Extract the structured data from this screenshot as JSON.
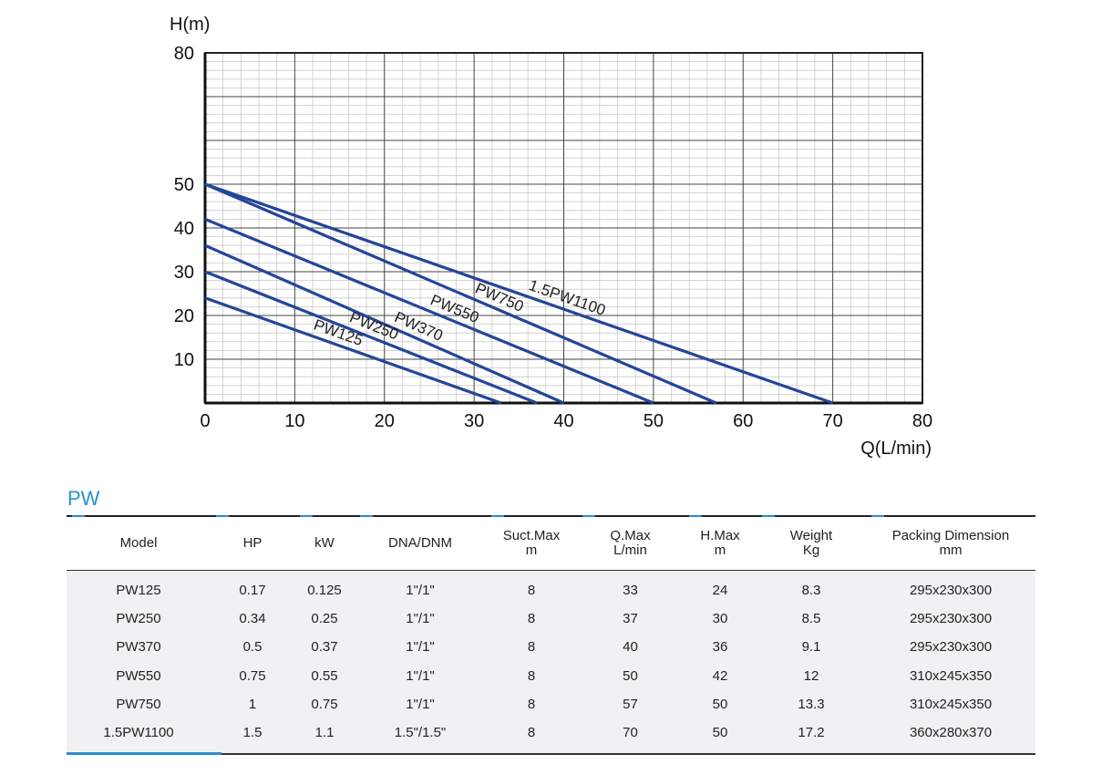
{
  "chart_data": {
    "type": "line",
    "ylabel": "H(m)",
    "xlabel": "Q(L/min)",
    "xlim": [
      0,
      80
    ],
    "ylim": [
      0,
      80
    ],
    "xticks": [
      0,
      10,
      20,
      30,
      40,
      50,
      60,
      70,
      80
    ],
    "yticks": [
      10,
      20,
      30,
      40,
      50,
      80
    ],
    "grid": true,
    "line_color": "#23469a",
    "series": [
      {
        "name": "PW125",
        "x": [
          0,
          33
        ],
        "y": [
          24,
          0
        ]
      },
      {
        "name": "PW250",
        "x": [
          0,
          37
        ],
        "y": [
          30,
          0
        ]
      },
      {
        "name": "PW370",
        "x": [
          0,
          40
        ],
        "y": [
          36,
          0
        ]
      },
      {
        "name": "PW550",
        "x": [
          0,
          50
        ],
        "y": [
          42,
          0
        ]
      },
      {
        "name": "PW750",
        "x": [
          0,
          57
        ],
        "y": [
          50,
          0
        ]
      },
      {
        "name": "1.5PW1100",
        "x": [
          0,
          70
        ],
        "y": [
          50,
          0
        ]
      }
    ]
  },
  "table": {
    "title": "PW",
    "accent_color": "#2a8fd0",
    "headers": [
      [
        "Model"
      ],
      [
        "HP"
      ],
      [
        "kW"
      ],
      [
        "DNA/DNM"
      ],
      [
        "Suct.Max",
        "m"
      ],
      [
        "Q.Max",
        "L/min"
      ],
      [
        "H.Max",
        "m"
      ],
      [
        "Weight",
        "Kg"
      ],
      [
        "Packing Dimension",
        "mm"
      ]
    ],
    "rows": [
      [
        "PW125",
        "0.17",
        "0.125",
        "1\"/1\"",
        "8",
        "33",
        "24",
        "8.3",
        "295x230x300"
      ],
      [
        "PW250",
        "0.34",
        "0.25",
        "1\"/1\"",
        "8",
        "37",
        "30",
        "8.5",
        "295x230x300"
      ],
      [
        "PW370",
        "0.5",
        "0.37",
        "1\"/1\"",
        "8",
        "40",
        "36",
        "9.1",
        "295x230x300"
      ],
      [
        "PW550",
        "0.75",
        "0.55",
        "1\"/1\"",
        "8",
        "50",
        "42",
        "12",
        "310x245x350"
      ],
      [
        "PW750",
        "1",
        "0.75",
        "1\"/1\"",
        "8",
        "57",
        "50",
        "13.3",
        "310x245x350"
      ],
      [
        "1.5PW1100",
        "1.5",
        "1.1",
        "1.5\"/1.5\"",
        "8",
        "70",
        "50",
        "17.2",
        "360x280x370"
      ]
    ]
  }
}
